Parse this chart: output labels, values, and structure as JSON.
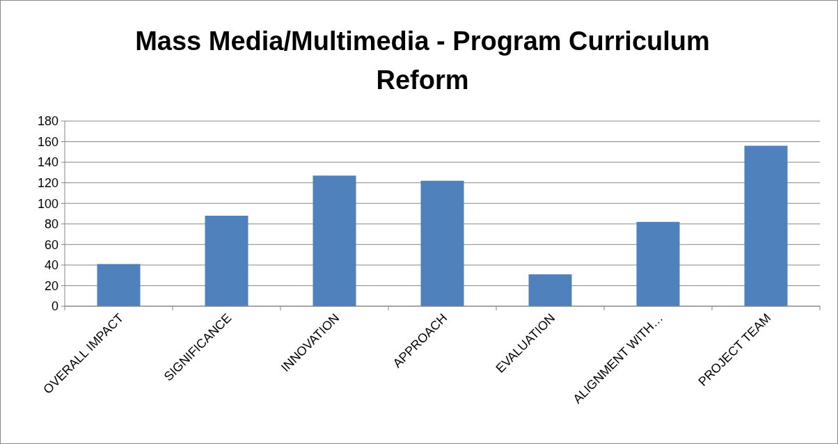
{
  "chart_data": {
    "type": "bar",
    "title": "Mass Media/Multimedia - Program Curriculum Reform",
    "categories": [
      "OVERALL IMPACT",
      "SIGNIFICANCE",
      "INNOVATION",
      "APPROACH",
      "EVALUATION",
      "ALIGNMENT WITH…",
      "PROJECT TEAM"
    ],
    "values": [
      41,
      88,
      127,
      122,
      31,
      82,
      156
    ],
    "color": "#4f81bd",
    "ylim": [
      0,
      180
    ],
    "yticks": [
      0,
      20,
      40,
      60,
      80,
      100,
      120,
      140,
      160,
      180
    ],
    "grid": "y"
  }
}
